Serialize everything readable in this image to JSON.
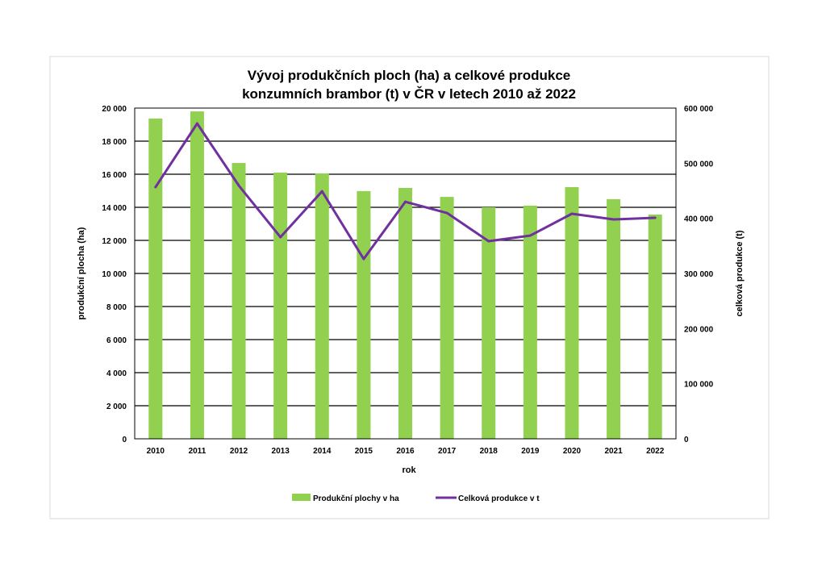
{
  "chart_data": {
    "type": "bar+line",
    "title": [
      "Vývoj produkčních ploch (ha) a celkové produkce",
      "konzumních brambor (t) v ČR v letech 2010 až 2022"
    ],
    "xlabel": "rok",
    "ylabel": "produkční plocha (ha)",
    "y2label": "celková produkce (t)",
    "categories": [
      "2010",
      "2011",
      "2012",
      "2013",
      "2014",
      "2015",
      "2016",
      "2017",
      "2018",
      "2019",
      "2020",
      "2021",
      "2022"
    ],
    "ylim": [
      0,
      20000
    ],
    "y2lim": [
      0,
      600000
    ],
    "yticks": [
      "0",
      "2 000",
      "4 000",
      "6 000",
      "8 000",
      "10 000",
      "12 000",
      "14 000",
      "16 000",
      "18 000",
      "20 000"
    ],
    "y2ticks": [
      "0",
      "100 000",
      "200 000",
      "300 000",
      "400 000",
      "500 000",
      "600 000"
    ],
    "grid": true,
    "legend_position": "bottom",
    "series": [
      {
        "name": "Produkční plochy v ha",
        "type": "bar",
        "axis": "left",
        "color": "#92d050",
        "values": [
          19370,
          19800,
          16680,
          16100,
          16050,
          14980,
          15170,
          14630,
          14000,
          14100,
          15220,
          14490,
          13560
        ]
      },
      {
        "name": "Celková produkce v t",
        "type": "line",
        "axis": "right",
        "color": "#7030a0",
        "values": [
          456600,
          572000,
          459500,
          365900,
          449000,
          326300,
          430000,
          409700,
          358500,
          368700,
          408300,
          398000,
          401000
        ]
      }
    ]
  }
}
